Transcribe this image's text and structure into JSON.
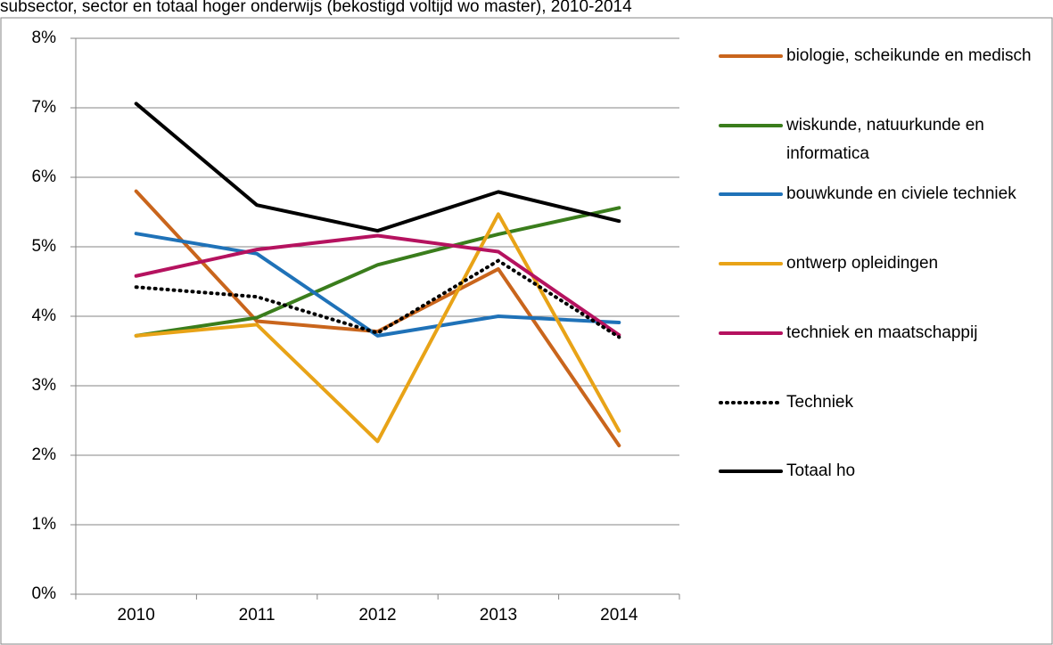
{
  "chart_data": {
    "type": "line",
    "title": "subsector, sector en totaal hoger onderwijs (bekostigd voltijd wo master), 2010-2014",
    "categories": [
      "2010",
      "2011",
      "2012",
      "2013",
      "2014"
    ],
    "ylim": [
      0,
      8
    ],
    "yticks": [
      {
        "value": 0,
        "label": "0%"
      },
      {
        "value": 1,
        "label": "1%"
      },
      {
        "value": 2,
        "label": "2%"
      },
      {
        "value": 3,
        "label": "3%"
      },
      {
        "value": 4,
        "label": "4%"
      },
      {
        "value": 5,
        "label": "5%"
      },
      {
        "value": 6,
        "label": "6%"
      },
      {
        "value": 7,
        "label": "7%"
      },
      {
        "value": 8,
        "label": "8%"
      }
    ],
    "grid": true,
    "legend": "right",
    "series": [
      {
        "name": "biologie, scheikunde en medisch",
        "color": "#c9651c",
        "style": "solid",
        "values": [
          5.8,
          3.93,
          3.78,
          4.68,
          2.14
        ]
      },
      {
        "name": "wiskunde, natuurkunde en informatica",
        "color": "#3a7d1c",
        "style": "solid",
        "values": [
          3.72,
          3.98,
          4.74,
          5.18,
          5.56
        ]
      },
      {
        "name": "bouwkunde en civiele techniek",
        "color": "#1f72b8",
        "style": "solid",
        "values": [
          5.19,
          4.9,
          3.72,
          4.0,
          3.91
        ]
      },
      {
        "name": "ontwerp opleidingen",
        "color": "#e8a317",
        "style": "solid",
        "values": [
          3.72,
          3.88,
          2.2,
          5.47,
          2.35
        ]
      },
      {
        "name": "techniek en maatschappij",
        "color": "#b5125f",
        "style": "solid",
        "values": [
          4.58,
          4.96,
          5.16,
          4.93,
          3.73
        ]
      },
      {
        "name": "Techniek",
        "color": "#000000",
        "style": "dotted",
        "values": [
          4.42,
          4.28,
          3.76,
          4.8,
          3.7
        ]
      },
      {
        "name": "Totaal ho",
        "color": "#000000",
        "style": "solid",
        "values": [
          7.06,
          5.6,
          5.23,
          5.79,
          5.37
        ]
      }
    ]
  }
}
